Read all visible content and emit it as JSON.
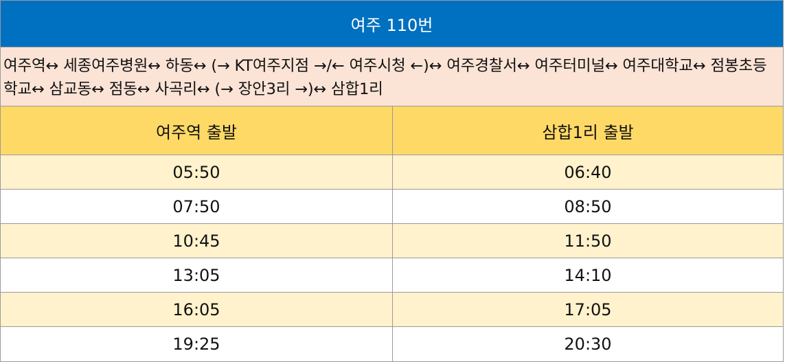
{
  "title": "여주 110번",
  "route": "여주역↔ 세종여주병원↔ 하동↔ (→ KT여주지점 →/← 여주시청 ←)↔ 여주경찰서↔ 여주터미널↔ 여주대학교↔ 점봉초등학교↔ 삼교동↔ 점동↔ 사곡리↔ (→ 장안3리 →)↔ 삼합1리",
  "columns": [
    "여주역 출발",
    "삼합1리 출발"
  ],
  "rows": [
    [
      "05:50",
      "06:40"
    ],
    [
      "07:50",
      "08:50"
    ],
    [
      "10:45",
      "11:50"
    ],
    [
      "13:05",
      "14:10"
    ],
    [
      "16:05",
      "17:05"
    ],
    [
      "19:25",
      "20:30"
    ]
  ],
  "colors": {
    "title_bg": "#0070c0",
    "route_bg": "#fbe3d6",
    "header_bg": "#ffd966",
    "row_shaded_bg": "#fff2cc",
    "row_plain_bg": "#ffffff"
  }
}
